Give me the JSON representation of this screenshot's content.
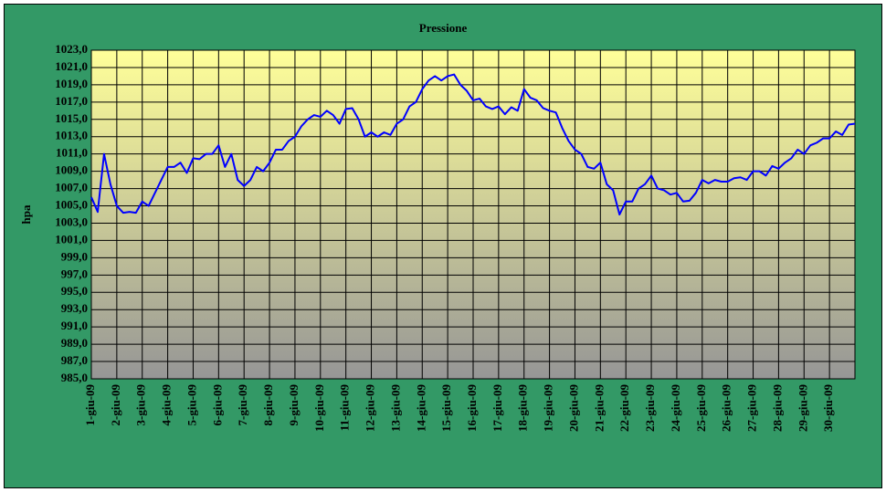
{
  "chart_data": {
    "type": "line",
    "title": "Pressione",
    "ylabel": "hpa",
    "color": "#0000ff",
    "grid": true,
    "x": [
      1,
      1.25,
      1.5,
      1.75,
      2,
      2.25,
      2.5,
      2.75,
      3,
      3.25,
      3.5,
      3.75,
      4,
      4.25,
      4.5,
      4.75,
      5,
      5.25,
      5.5,
      5.75,
      6,
      6.25,
      6.5,
      6.75,
      7,
      7.25,
      7.5,
      7.75,
      8,
      8.25,
      8.5,
      8.75,
      9,
      9.25,
      9.5,
      9.75,
      10,
      10.25,
      10.5,
      10.75,
      11,
      11.25,
      11.5,
      11.75,
      12,
      12.25,
      12.5,
      12.75,
      13,
      13.25,
      13.5,
      13.75,
      14,
      14.25,
      14.5,
      14.75,
      15,
      15.25,
      15.5,
      15.75,
      16,
      16.25,
      16.5,
      16.75,
      17,
      17.25,
      17.5,
      17.75,
      18,
      18.25,
      18.5,
      18.75,
      19,
      19.25,
      19.5,
      19.75,
      20,
      20.25,
      20.5,
      20.75,
      21,
      21.25,
      21.5,
      21.75,
      22,
      22.25,
      22.5,
      22.75,
      23,
      23.25,
      23.5,
      23.75,
      24,
      24.25,
      24.5,
      24.75,
      25,
      25.25,
      25.5,
      25.75,
      26,
      26.25,
      26.5,
      26.75,
      27,
      27.25,
      27.5,
      27.75,
      28,
      28.25,
      28.5,
      28.75,
      29,
      29.25,
      29.5,
      29.75,
      30,
      30.25,
      30.5,
      30.75,
      31
    ],
    "values": [
      1006,
      1004.3,
      1011,
      1007.5,
      1005,
      1004.2,
      1004.3,
      1004.2,
      1005.5,
      1005,
      1006.5,
      1008,
      1009.5,
      1009.5,
      1010,
      1008.8,
      1010.5,
      1010.4,
      1011,
      1011,
      1012,
      1009.5,
      1011,
      1008,
      1007.3,
      1008,
      1009.5,
      1009,
      1010,
      1011.5,
      1011.5,
      1012.5,
      1013,
      1014.2,
      1015,
      1015.5,
      1015.3,
      1016,
      1015.5,
      1014.5,
      1016.2,
      1016.3,
      1015,
      1013,
      1013.5,
      1013,
      1013.5,
      1013.2,
      1014.5,
      1015,
      1016.5,
      1017,
      1018.5,
      1019.5,
      1020,
      1019.5,
      1020,
      1020.2,
      1019,
      1018.3,
      1017.2,
      1017.4,
      1016.5,
      1016.2,
      1016.5,
      1015.6,
      1016.4,
      1016,
      1018.5,
      1017.5,
      1017.2,
      1016.3,
      1016,
      1015.8,
      1014,
      1012.5,
      1011.5,
      1011,
      1009.5,
      1009.3,
      1010,
      1007.5,
      1006.8,
      1004,
      1005.5,
      1005.5,
      1007,
      1007.5,
      1008.5,
      1007,
      1006.8,
      1006.3,
      1006.5,
      1005.5,
      1005.6,
      1006.5,
      1008,
      1007.6,
      1008,
      1007.8,
      1007.8,
      1008.2,
      1008.3,
      1008,
      1009,
      1009,
      1008.5,
      1009.6,
      1009.3,
      1010,
      1010.5,
      1011.5,
      1011,
      1012,
      1012.3,
      1012.8,
      1012.8,
      1013.6,
      1013.2,
      1014.4,
      1014.5
    ],
    "xlim": [
      1,
      31
    ],
    "xticks": [
      {
        "value": 1,
        "label": "1-giu-09"
      },
      {
        "value": 2,
        "label": "2-giu-09"
      },
      {
        "value": 3,
        "label": "3-giu-09"
      },
      {
        "value": 4,
        "label": "4-giu-09"
      },
      {
        "value": 5,
        "label": "5-giu-09"
      },
      {
        "value": 6,
        "label": "6-giu-09"
      },
      {
        "value": 7,
        "label": "7-giu-09"
      },
      {
        "value": 8,
        "label": "8-giu-09"
      },
      {
        "value": 9,
        "label": "9-giu-09"
      },
      {
        "value": 10,
        "label": "10-giu-09"
      },
      {
        "value": 11,
        "label": "11-giu-09"
      },
      {
        "value": 12,
        "label": "12-giu-09"
      },
      {
        "value": 13,
        "label": "13-giu-09"
      },
      {
        "value": 14,
        "label": "14-giu-09"
      },
      {
        "value": 15,
        "label": "15-giu-09"
      },
      {
        "value": 16,
        "label": "16-giu-09"
      },
      {
        "value": 17,
        "label": "17-giu-09"
      },
      {
        "value": 18,
        "label": "18-giu-09"
      },
      {
        "value": 19,
        "label": "19-giu-09"
      },
      {
        "value": 20,
        "label": "20-giu-09"
      },
      {
        "value": 21,
        "label": "21-giu-09"
      },
      {
        "value": 22,
        "label": "22-giu-09"
      },
      {
        "value": 23,
        "label": "23-giu-09"
      },
      {
        "value": 24,
        "label": "24-giu-09"
      },
      {
        "value": 25,
        "label": "25-giu-09"
      },
      {
        "value": 26,
        "label": "26-giu-09"
      },
      {
        "value": 27,
        "label": "27-giu-09"
      },
      {
        "value": 28,
        "label": "28-giu-09"
      },
      {
        "value": 29,
        "label": "29-giu-09"
      },
      {
        "value": 30,
        "label": "30-giu-09"
      }
    ],
    "ylim": [
      985,
      1023
    ],
    "yticks": [
      {
        "value": 985,
        "label": "985,0"
      },
      {
        "value": 987,
        "label": "987,0"
      },
      {
        "value": 989,
        "label": "989,0"
      },
      {
        "value": 991,
        "label": "991,0"
      },
      {
        "value": 993,
        "label": "993,0"
      },
      {
        "value": 995,
        "label": "995,0"
      },
      {
        "value": 997,
        "label": "997,0"
      },
      {
        "value": 999,
        "label": "999,0"
      },
      {
        "value": 1001,
        "label": "1001,0"
      },
      {
        "value": 1003,
        "label": "1003,0"
      },
      {
        "value": 1005,
        "label": "1005,0"
      },
      {
        "value": 1007,
        "label": "1007,0"
      },
      {
        "value": 1009,
        "label": "1009,0"
      },
      {
        "value": 1011,
        "label": "1011,0"
      },
      {
        "value": 1013,
        "label": "1013,0"
      },
      {
        "value": 1015,
        "label": "1015,0"
      },
      {
        "value": 1017,
        "label": "1017,0"
      },
      {
        "value": 1019,
        "label": "1019,0"
      },
      {
        "value": 1021,
        "label": "1021,0"
      },
      {
        "value": 1023,
        "label": "1023,0"
      }
    ]
  }
}
